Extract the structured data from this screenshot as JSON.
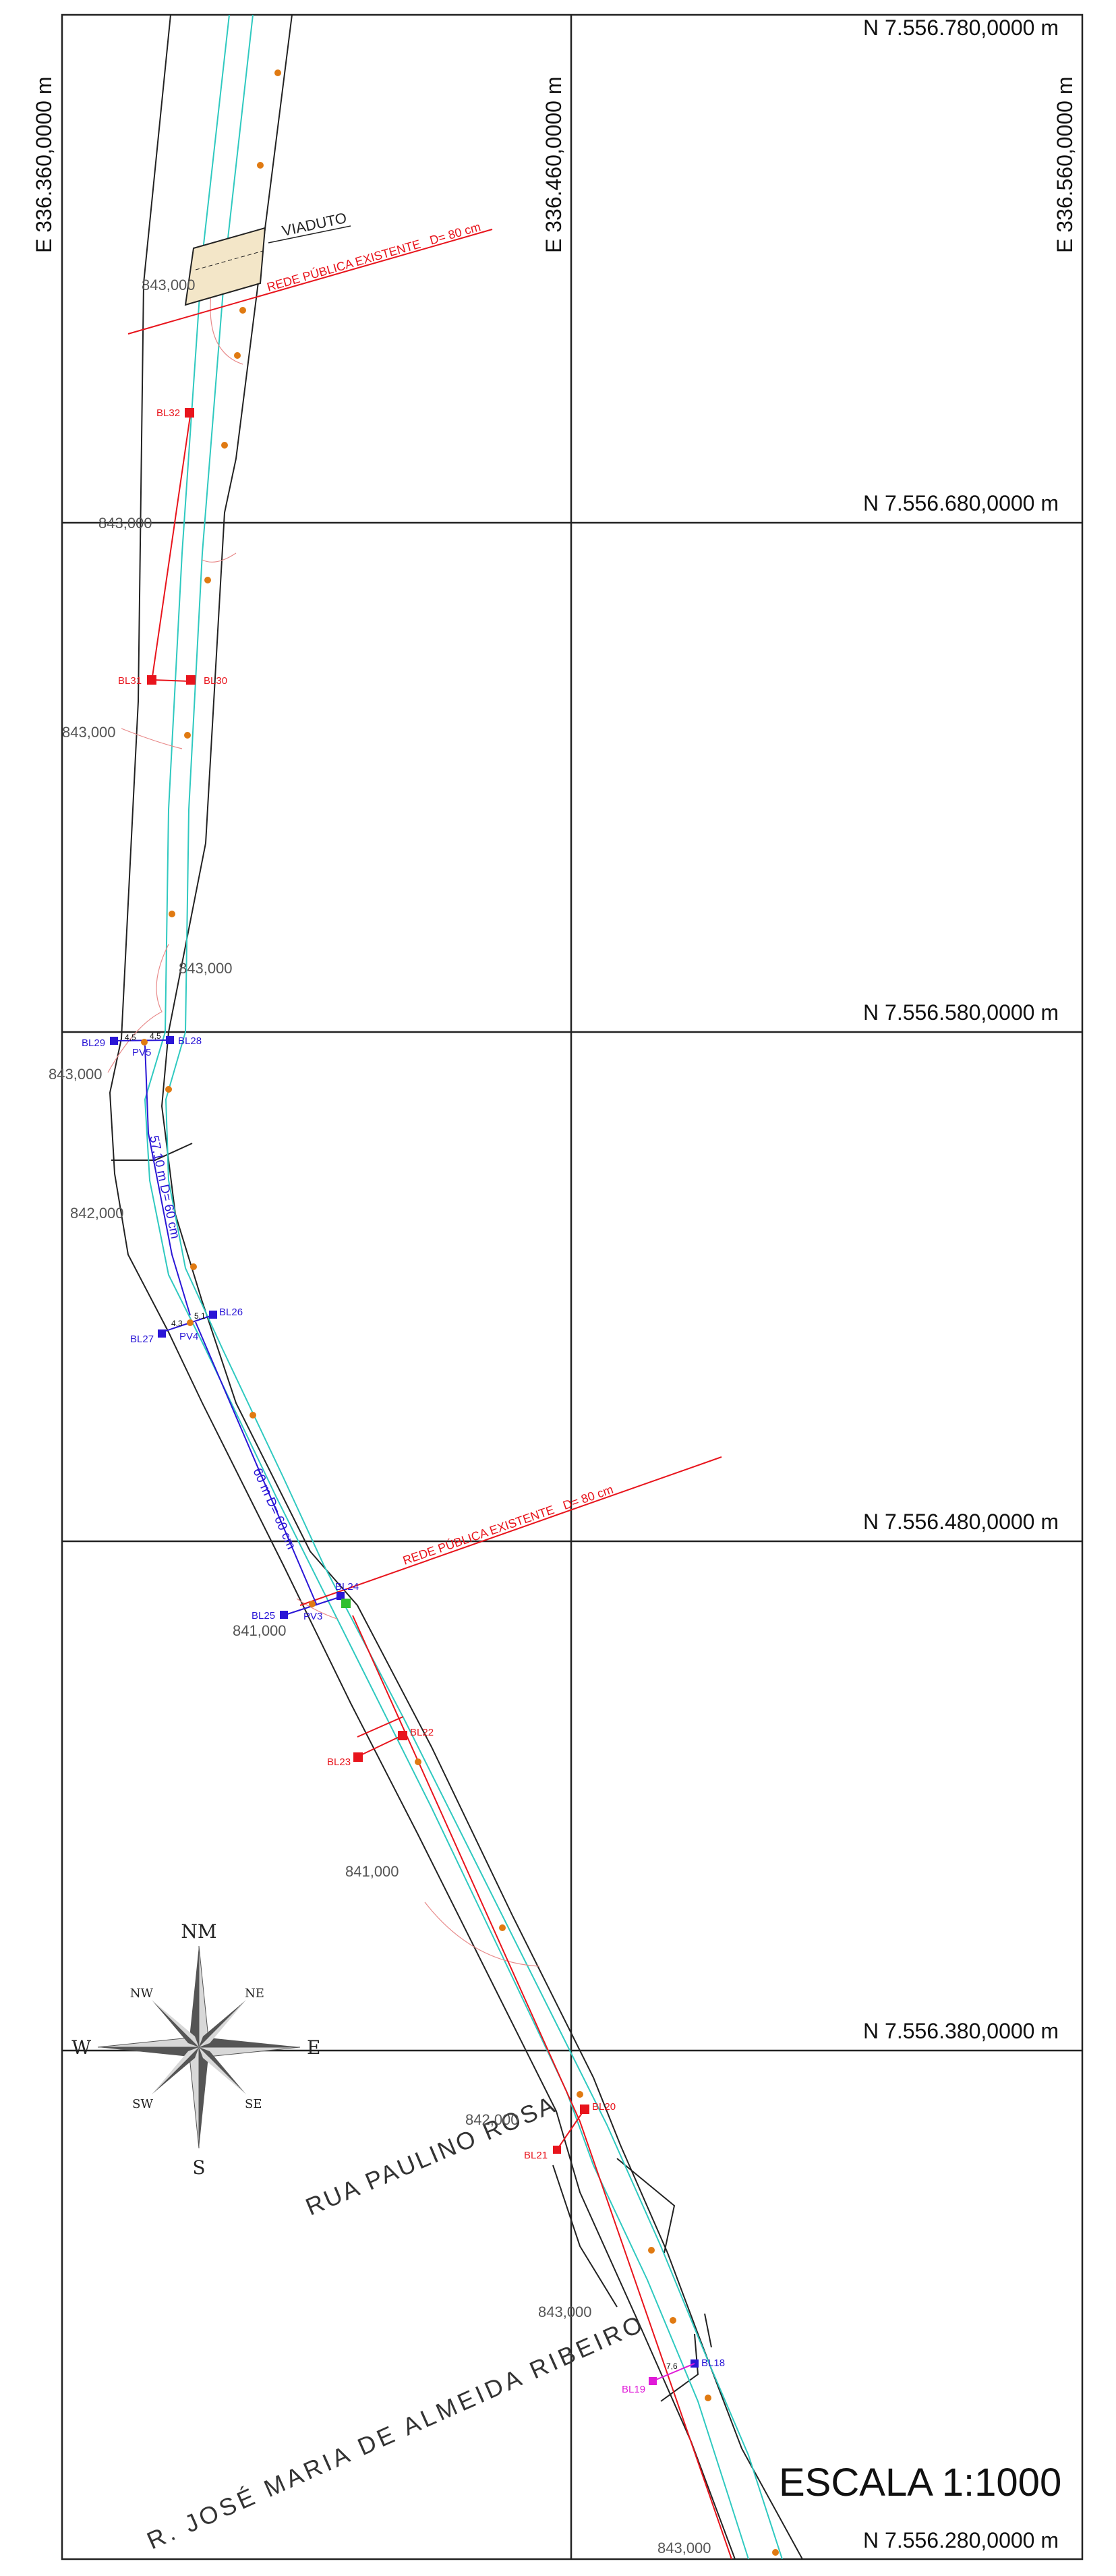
{
  "grid": {
    "northings": [
      "N 7.556.780,0000 m",
      "N 7.556.680,0000 m",
      "N 7.556.580,0000 m",
      "N 7.556.480,0000 m",
      "N 7.556.380,0000 m",
      "N 7.556.280,0000 m"
    ],
    "eastings": [
      "E 336.360,0000 m",
      "E 336.460,0000 m",
      "E 336.560,0000 m"
    ]
  },
  "labels": {
    "viaduto": "VIADUTO",
    "rede_top": "REDE PÚBLICA EXISTENTE_ D= 80 cm",
    "rede_mid": "REDE PÚBLICA EXISTENTE_ D= 80 cm",
    "pipe1": "57,10 m D= 60 cm",
    "pipe2": "60 m D= 60 cm",
    "street1": "RUA  PAULINO  ROSA",
    "street2": "R. JOSÉ  MARIA  DE  ALMEIDA  RIBEIRO",
    "scale": "ESCALA 1:1000"
  },
  "contours": [
    "843,000",
    "843,000",
    "843,000",
    "843,000",
    "843,000",
    "842,000",
    "841,000",
    "841,000",
    "842,000",
    "843,000",
    "843,000"
  ],
  "nodes": {
    "bl32": "BL32",
    "bl31": "BL31",
    "bl30": "BL30",
    "bl29": "BL29",
    "bl28": "BL28",
    "pv5": "PV5",
    "bl27": "BL27",
    "pv4": "PV4",
    "bl26": "BL26",
    "bl25": "BL25",
    "pv3": "PV3",
    "bl24": "BL24",
    "bl23": "BL23",
    "bl22": "BL22",
    "bl20": "BL20",
    "bl21": "BL21",
    "bl18": "BL18",
    "bl19": "BL19"
  },
  "dims": {
    "d1": "4,5",
    "d2": "4,5",
    "d3": "4,3",
    "d4": "5,1",
    "d5": "7,6"
  },
  "compass": {
    "n": "NM",
    "s": "S",
    "e": "E",
    "w": "W",
    "ne": "NE",
    "nw": "NW",
    "se": "SE",
    "sw": "SW"
  },
  "colors": {
    "red": "#e8141c",
    "blue": "#2a16d6",
    "cyan": "#2fc9c0",
    "orange": "#e07a12",
    "magenta": "#e01ad8",
    "green": "#2fbf2f",
    "beige": "#f3e6c8"
  }
}
